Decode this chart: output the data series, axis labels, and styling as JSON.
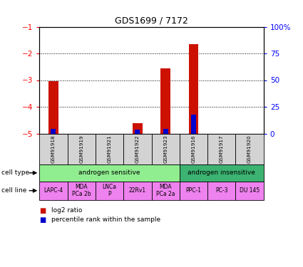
{
  "title": "GDS1699 / 7172",
  "samples": [
    "GSM91918",
    "GSM91919",
    "GSM91921",
    "GSM91922",
    "GSM91923",
    "GSM91916",
    "GSM91917",
    "GSM91920"
  ],
  "log2_ratio": [
    -3.05,
    0.0,
    0.0,
    -4.6,
    -2.55,
    -1.65,
    0.0,
    0.0
  ],
  "percentile_rank": [
    4.5,
    0.0,
    0.0,
    4.0,
    4.5,
    18.0,
    0.0,
    0.0
  ],
  "ylim_left": [
    -5,
    -1
  ],
  "ylim_right": [
    0,
    100
  ],
  "yticks_left": [
    -5,
    -4,
    -3,
    -2,
    -1
  ],
  "yticks_right": [
    0,
    25,
    50,
    75,
    100
  ],
  "ytick_labels_right": [
    "0",
    "25",
    "50",
    "75",
    "100%"
  ],
  "cell_types": [
    {
      "label": "androgen sensitive",
      "start": 0,
      "end": 5,
      "color": "#90EE90"
    },
    {
      "label": "androgen insensitive",
      "start": 5,
      "end": 8,
      "color": "#3CB371"
    }
  ],
  "cell_lines": [
    {
      "label": "LAPC-4",
      "start": 0,
      "end": 1
    },
    {
      "label": "MDA\nPCa 2b",
      "start": 1,
      "end": 2
    },
    {
      "label": "LNCa\nP",
      "start": 2,
      "end": 3
    },
    {
      "label": "22Rv1",
      "start": 3,
      "end": 4
    },
    {
      "label": "MDA\nPCa 2a",
      "start": 4,
      "end": 5
    },
    {
      "label": "PPC-1",
      "start": 5,
      "end": 6
    },
    {
      "label": "PC-3",
      "start": 6,
      "end": 7
    },
    {
      "label": "DU 145",
      "start": 7,
      "end": 8
    }
  ],
  "cell_line_color": "#EE82EE",
  "sample_box_color": "#D3D3D3",
  "bar_color_red": "#CC1100",
  "bar_color_blue": "#0000CC",
  "bar_width": 0.35,
  "blue_bar_width": 0.18
}
